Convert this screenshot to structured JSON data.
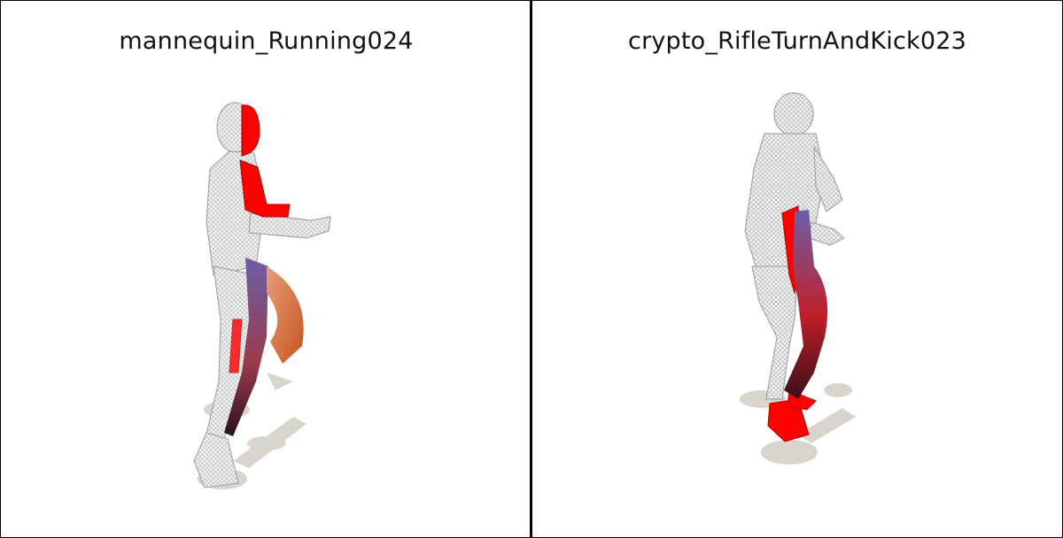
{
  "panels": [
    {
      "title": "mannequin_Running024"
    },
    {
      "title": "crypto_RifleTurnAndKick023"
    }
  ],
  "colors": {
    "background": "#ffffff",
    "border": "#000000",
    "shadow": "#d9d5cc",
    "wireframe": "#b8b8b8",
    "highlight_red": "#ff0000",
    "highlight_purple": "#6b5fa8",
    "highlight_orange": "#e8722c"
  }
}
